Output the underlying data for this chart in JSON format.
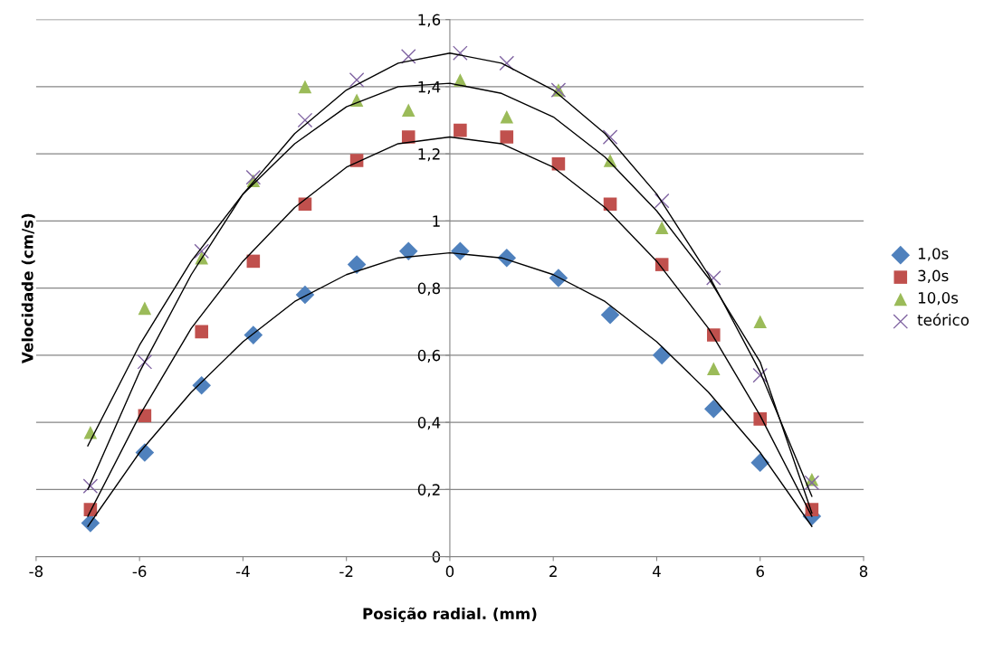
{
  "chart_data": {
    "type": "scatter",
    "xlabel": "Posição radial. (mm)",
    "ylabel": "Velocidade (cm/s)",
    "x": [
      -6.95,
      -5.9,
      -4.8,
      -3.8,
      -2.8,
      -1.8,
      -0.8,
      0.2,
      1.1,
      2.1,
      3.1,
      4.1,
      5.1,
      6.0,
      7.0
    ],
    "series": [
      {
        "name": "1,0s",
        "color": "#4f81bd",
        "marker": "diamond",
        "values": [
          0.1,
          0.31,
          0.51,
          0.66,
          0.78,
          0.87,
          0.91,
          0.91,
          0.89,
          0.83,
          0.72,
          0.6,
          0.44,
          0.28,
          0.12
        ]
      },
      {
        "name": "3,0s",
        "color": "#c0504d",
        "marker": "square",
        "values": [
          0.14,
          0.42,
          0.67,
          0.88,
          1.05,
          1.18,
          1.25,
          1.27,
          1.25,
          1.17,
          1.05,
          0.87,
          0.66,
          0.41,
          0.14
        ]
      },
      {
        "name": "10,0s",
        "color": "#9bbb59",
        "marker": "triangle",
        "values": [
          0.37,
          0.74,
          0.89,
          1.12,
          1.4,
          1.36,
          1.33,
          1.42,
          1.31,
          1.39,
          1.18,
          0.98,
          0.56,
          0.7,
          0.23
        ]
      },
      {
        "name": "teórico",
        "color": "#8064a2",
        "marker": "cross",
        "values": [
          0.21,
          0.58,
          0.91,
          1.13,
          1.3,
          1.42,
          1.49,
          1.5,
          1.47,
          1.39,
          1.25,
          1.06,
          0.83,
          0.54,
          0.22
        ]
      },
      {
        "type": "line",
        "color": "#000000",
        "x": [
          -7,
          -6,
          -5,
          -4,
          -3,
          -2,
          -1,
          0,
          1,
          2,
          3,
          4,
          5,
          6,
          7
        ],
        "values": [
          0.09,
          0.31,
          0.49,
          0.64,
          0.76,
          0.84,
          0.89,
          0.905,
          0.89,
          0.84,
          0.76,
          0.64,
          0.49,
          0.31,
          0.09
        ]
      },
      {
        "type": "line",
        "color": "#000000",
        "x": [
          -7,
          -6,
          -5,
          -4,
          -3,
          -2,
          -1,
          0,
          1,
          2,
          3,
          4,
          5,
          6,
          7
        ],
        "values": [
          0.12,
          0.42,
          0.68,
          0.88,
          1.04,
          1.16,
          1.23,
          1.25,
          1.23,
          1.16,
          1.04,
          0.88,
          0.68,
          0.42,
          0.12
        ]
      },
      {
        "type": "line",
        "color": "#000000",
        "x": [
          -7,
          -6,
          -5,
          -4,
          -3,
          -2,
          -1,
          0,
          1,
          2,
          3,
          4,
          5,
          6,
          7
        ],
        "values": [
          0.33,
          0.63,
          0.88,
          1.08,
          1.23,
          1.34,
          1.4,
          1.41,
          1.38,
          1.31,
          1.19,
          1.03,
          0.83,
          0.58,
          0.13
        ]
      },
      {
        "type": "line",
        "color": "#000000",
        "x": [
          -7,
          -6,
          -5,
          -4,
          -3,
          -2,
          -1,
          0,
          1,
          2,
          3,
          4,
          5,
          6,
          7
        ],
        "values": [
          0.2,
          0.55,
          0.84,
          1.08,
          1.26,
          1.39,
          1.47,
          1.5,
          1.47,
          1.39,
          1.26,
          1.08,
          0.84,
          0.55,
          0.18
        ]
      }
    ],
    "xlim": [
      -8,
      8
    ],
    "xticks": [
      -8,
      -6,
      -4,
      -2,
      0,
      2,
      4,
      6,
      8
    ],
    "ylim": [
      0,
      1.6
    ],
    "yticks": [
      0,
      {
        "value": 0.2,
        "label": "0,2"
      },
      {
        "value": 0.4,
        "label": "0,4"
      },
      {
        "value": 0.6,
        "label": "0,6"
      },
      {
        "value": 0.8,
        "label": "0,8"
      },
      1,
      {
        "value": 1.2,
        "label": "1,2"
      },
      {
        "value": 1.4,
        "label": "1,4"
      },
      {
        "value": 1.6,
        "label": "1,6"
      }
    ],
    "grid": "y",
    "legend": "right"
  }
}
